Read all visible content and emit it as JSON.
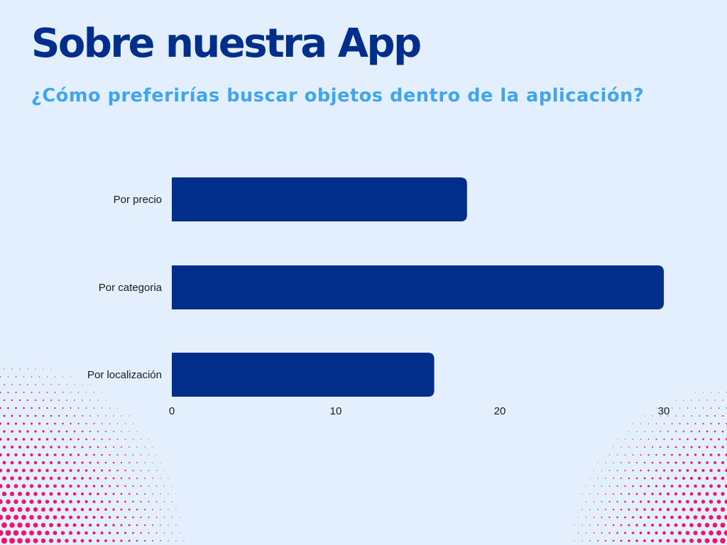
{
  "page": {
    "title": "Sobre nuestra App",
    "subtitle": "¿Cómo preferirías buscar objetos dentro de la aplicación?"
  },
  "colors": {
    "background": "#e3effc",
    "title": "#002e8a",
    "subtitle": "#3ea5ee",
    "bar": "#002e8a",
    "dots": "#f0166e"
  },
  "chart_data": {
    "type": "bar",
    "orientation": "horizontal",
    "categories": [
      "Por precio",
      "Por categoria",
      "Por localización"
    ],
    "values": [
      18,
      30,
      16
    ],
    "xlim": [
      0,
      30
    ],
    "xticks": [
      0,
      10,
      20,
      30
    ],
    "title": "",
    "xlabel": "",
    "ylabel": "",
    "grid": false,
    "legend": "none"
  }
}
